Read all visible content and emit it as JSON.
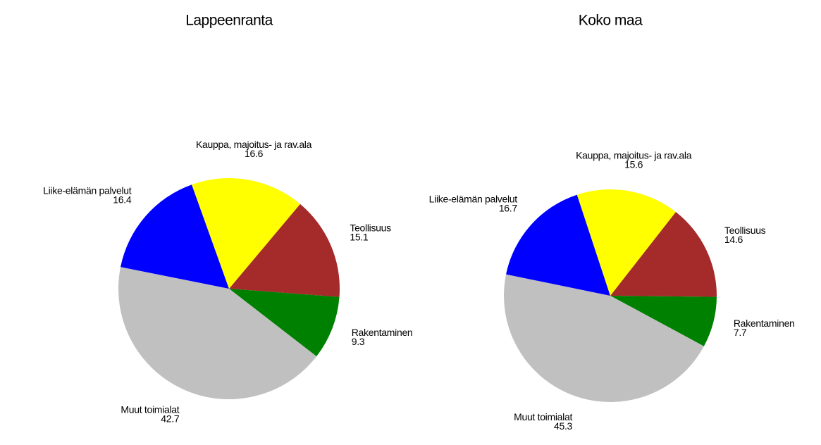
{
  "chart_data": [
    {
      "type": "pie",
      "title": "Lappeenranta",
      "categories": [
        "Teollisuus",
        "Rakentaminen",
        "Muut toimialat",
        "Liike-elämän palvelut",
        "Kauppa, majoitus- ja rav.ala"
      ],
      "values": [
        15.1,
        9.3,
        42.7,
        16.4,
        16.6
      ],
      "colors": [
        "#a52a2a",
        "#008000",
        "#c0c0c0",
        "#0000ff",
        "#ffff00"
      ]
    },
    {
      "type": "pie",
      "title": "Koko maa",
      "categories": [
        "Teollisuus",
        "Rakentaminen",
        "Muut toimialat",
        "Liike-elämän palvelut",
        "Kauppa, majoitus- ja rav.ala"
      ],
      "values": [
        14.6,
        7.7,
        45.3,
        16.7,
        15.6
      ],
      "colors": [
        "#a52a2a",
        "#008000",
        "#c0c0c0",
        "#0000ff",
        "#ffff00"
      ]
    }
  ]
}
